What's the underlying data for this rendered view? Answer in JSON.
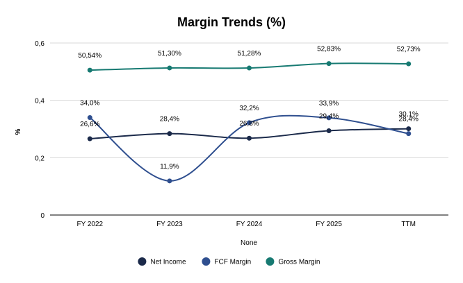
{
  "chart_data": {
    "type": "line",
    "title": "Margin Trends (%)",
    "xlabel": "None",
    "ylabel": "%",
    "ylim": [
      0,
      0.6
    ],
    "yticks": [
      "0",
      "0,2",
      "0,4",
      "0,6"
    ],
    "categories": [
      "FY 2022",
      "FY 2023",
      "FY 2024",
      "FY 2025",
      "TTM"
    ],
    "grid": "horizontal",
    "legend_position": "bottom",
    "series": [
      {
        "name": "Net Income",
        "color": "#1b2a4a",
        "values": [
          0.266,
          0.284,
          0.268,
          0.294,
          0.301
        ],
        "labels": [
          "26,6%",
          "28,4%",
          "26,8%",
          "29,4%",
          "30,1%"
        ]
      },
      {
        "name": "FCF Margin",
        "color": "#2f4f8f",
        "values": [
          0.34,
          0.119,
          0.322,
          0.339,
          0.284
        ],
        "labels": [
          "34,0%",
          "11,9%",
          "32,2%",
          "33,9%",
          "28,4%"
        ]
      },
      {
        "name": "Gross Margin",
        "color": "#177a72",
        "values": [
          0.5054,
          0.513,
          0.5128,
          0.5283,
          0.5273
        ],
        "labels": [
          "50,54%",
          "51,30%",
          "51,28%",
          "52,83%",
          "52,73%"
        ]
      }
    ]
  }
}
